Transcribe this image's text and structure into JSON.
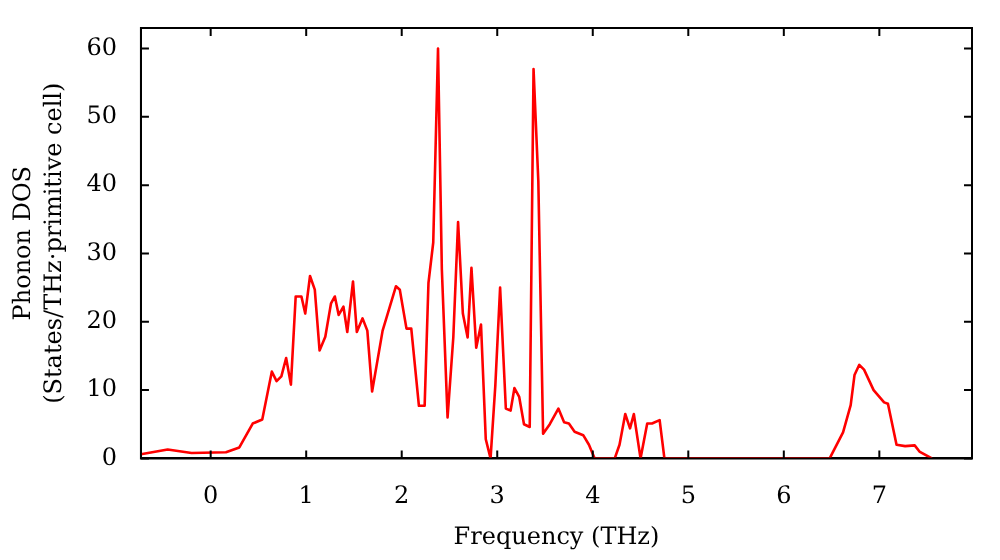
{
  "chart_data": {
    "type": "line",
    "xlabel": "Frequency (THz)",
    "ylabel": "Phonon DOS\n(States/THz·primitive cell)",
    "xlim": [
      -0.73,
      7.97
    ],
    "ylim": [
      0,
      63
    ],
    "xticks": [
      0,
      1,
      2,
      3,
      4,
      5,
      6,
      7
    ],
    "yticks": [
      0,
      10,
      20,
      30,
      40,
      50,
      60
    ],
    "legend": false,
    "series": [
      {
        "color": "#ff0000",
        "x": [
          -0.73,
          -0.45,
          -0.2,
          0.16,
          0.3,
          0.44,
          0.54,
          0.64,
          0.69,
          0.74,
          0.79,
          0.84,
          0.89,
          0.95,
          0.99,
          1.04,
          1.09,
          1.14,
          1.2,
          1.26,
          1.3,
          1.34,
          1.39,
          1.43,
          1.49,
          1.53,
          1.59,
          1.64,
          1.69,
          1.8,
          1.94,
          1.98,
          2.05,
          2.1,
          2.18,
          2.24,
          2.28,
          2.33,
          2.38,
          2.42,
          2.48,
          2.54,
          2.59,
          2.64,
          2.69,
          2.73,
          2.78,
          2.83,
          2.88,
          2.93,
          2.98,
          3.03,
          3.09,
          3.14,
          3.18,
          3.23,
          3.28,
          3.34,
          3.38,
          3.43,
          3.48,
          3.55,
          3.64,
          3.7,
          3.75,
          3.81,
          3.9,
          3.96,
          4.02,
          4.23,
          4.28,
          4.34,
          4.39,
          4.43,
          4.5,
          4.57,
          4.62,
          4.7,
          4.75,
          4.84,
          6.48,
          6.62,
          6.7,
          6.74,
          6.79,
          6.84,
          6.94,
          7.05,
          7.09,
          7.18,
          7.27,
          7.37,
          7.42,
          7.55
        ],
        "values": [
          0.6,
          1.3,
          0.8,
          0.9,
          1.6,
          5.1,
          5.7,
          12.7,
          11.3,
          12,
          14.7,
          10.8,
          23.7,
          23.7,
          21.2,
          26.7,
          24.7,
          15.8,
          17.8,
          22.7,
          23.7,
          21,
          22.2,
          18.5,
          25.9,
          18.5,
          20.5,
          18.7,
          9.8,
          18.7,
          25.2,
          24.7,
          19,
          19,
          7.7,
          7.7,
          25.7,
          31.6,
          60,
          27.7,
          6,
          17.7,
          34.6,
          21.2,
          17.7,
          27.9,
          16.2,
          19.6,
          2.8,
          0,
          10.7,
          25,
          7.3,
          7,
          10.3,
          9,
          5,
          4.6,
          57,
          40.6,
          3.6,
          5,
          7.3,
          5.3,
          5.1,
          3.9,
          3.4,
          2,
          0,
          0,
          2,
          6.5,
          4.4,
          6.5,
          0,
          5.1,
          5.1,
          5.6,
          0,
          0,
          0,
          3.8,
          7.8,
          12.2,
          13.7,
          13,
          10,
          8.2,
          8,
          2,
          1.8,
          1.9,
          1,
          0
        ]
      }
    ]
  }
}
